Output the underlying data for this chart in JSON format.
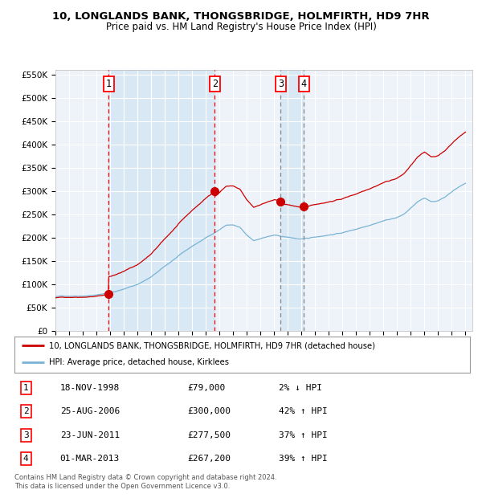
{
  "title1": "10, LONGLANDS BANK, THONGSBRIDGE, HOLMFIRTH, HD9 7HR",
  "title2": "Price paid vs. HM Land Registry's House Price Index (HPI)",
  "ylim": [
    0,
    560000
  ],
  "yticks": [
    0,
    50000,
    100000,
    150000,
    200000,
    250000,
    300000,
    350000,
    400000,
    450000,
    500000,
    550000
  ],
  "ytick_labels": [
    "£0",
    "£50K",
    "£100K",
    "£150K",
    "£200K",
    "£250K",
    "£300K",
    "£350K",
    "£400K",
    "£450K",
    "£500K",
    "£550K"
  ],
  "xlim_start": 1995.0,
  "xlim_end": 2025.5,
  "xtick_years": [
    1995,
    1996,
    1997,
    1998,
    1999,
    2000,
    2001,
    2002,
    2003,
    2004,
    2005,
    2006,
    2007,
    2008,
    2009,
    2010,
    2011,
    2012,
    2013,
    2014,
    2015,
    2016,
    2017,
    2018,
    2019,
    2020,
    2021,
    2022,
    2023,
    2024,
    2025
  ],
  "sale_dates_decimal": [
    1998.88,
    2006.65,
    2011.47,
    2013.17
  ],
  "sale_prices": [
    79000,
    300000,
    277500,
    267200
  ],
  "sale_labels": [
    "1",
    "2",
    "3",
    "4"
  ],
  "legend_line1": "10, LONGLANDS BANK, THONGSBRIDGE, HOLMFIRTH, HD9 7HR (detached house)",
  "legend_line2": "HPI: Average price, detached house, Kirklees",
  "table_data": [
    [
      "1",
      "18-NOV-1998",
      "£79,000",
      "2% ↓ HPI"
    ],
    [
      "2",
      "25-AUG-2006",
      "£300,000",
      "42% ↑ HPI"
    ],
    [
      "3",
      "23-JUN-2011",
      "£277,500",
      "37% ↑ HPI"
    ],
    [
      "4",
      "01-MAR-2013",
      "£267,200",
      "39% ↑ HPI"
    ]
  ],
  "footer": "Contains HM Land Registry data © Crown copyright and database right 2024.\nThis data is licensed under the Open Government Licence v3.0.",
  "hpi_line_color": "#7ab3d4",
  "price_line_color": "#cc0000",
  "bg_color": "#ffffff",
  "plot_bg_color": "#eef3fa",
  "shade_color": "#d8e8f4",
  "grid_color": "#ffffff"
}
